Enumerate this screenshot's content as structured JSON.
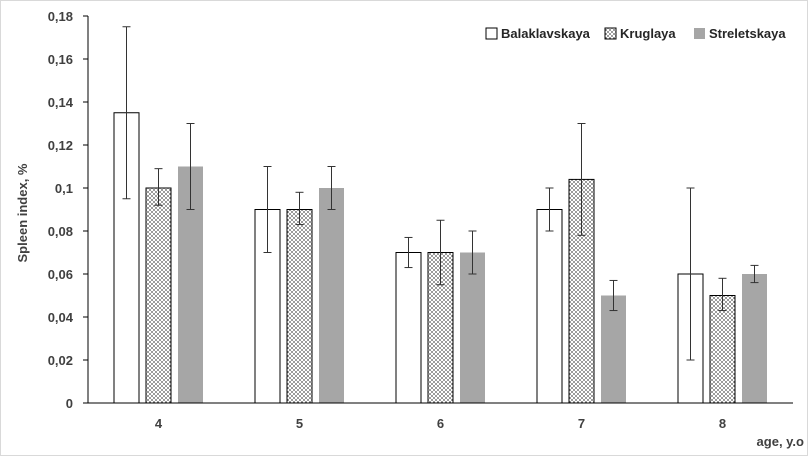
{
  "chart_data": {
    "type": "bar",
    "categories": [
      "4",
      "5",
      "6",
      "7",
      "8"
    ],
    "series": [
      {
        "name": "Balaklavskaya",
        "values": [
          0.135,
          0.09,
          0.07,
          0.09,
          0.06
        ],
        "err_low": [
          0.095,
          0.07,
          0.063,
          0.08,
          0.02
        ],
        "err_high": [
          0.175,
          0.11,
          0.077,
          0.1,
          0.1
        ],
        "fill": "#ffffff",
        "pattern": "none"
      },
      {
        "name": "Kruglaya",
        "values": [
          0.1,
          0.09,
          0.07,
          0.104,
          0.05
        ],
        "err_low": [
          0.092,
          0.083,
          0.055,
          0.078,
          0.043
        ],
        "err_high": [
          0.109,
          0.098,
          0.085,
          0.13,
          0.058
        ],
        "fill": "#bfbfbf",
        "pattern": "dots"
      },
      {
        "name": "Streletskaya",
        "values": [
          0.11,
          0.1,
          0.07,
          0.05,
          0.06
        ],
        "err_low": [
          0.09,
          0.09,
          0.06,
          0.043,
          0.056
        ],
        "err_high": [
          0.13,
          0.11,
          0.08,
          0.057,
          0.064
        ],
        "fill": "#a6a6a6",
        "pattern": "solid"
      }
    ],
    "xlabel": "age, y.o",
    "ylabel": "Spleen index,  %",
    "ylim": [
      0,
      0.18
    ],
    "yticks": [
      "0",
      "0,02",
      "0,04",
      "0,06",
      "0,08",
      "0,1",
      "0,12",
      "0,14",
      "0,16",
      "0,18"
    ],
    "grid": false,
    "legend_position": "top-right"
  }
}
